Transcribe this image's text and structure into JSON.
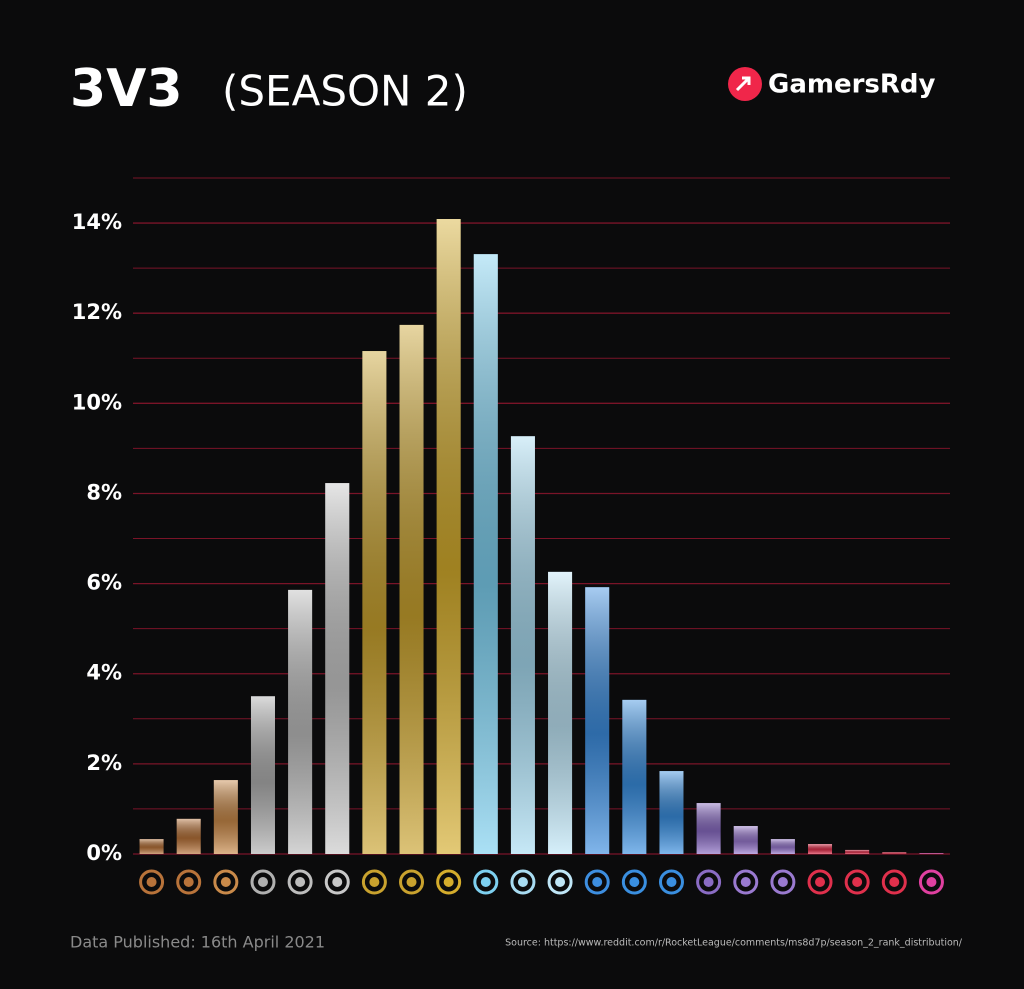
{
  "chart_data": {
    "type": "bar",
    "title": "3V3",
    "subtitle": "(SEASON 2)",
    "brand": "GamersRdy",
    "footer": "Data Published: 16th April 2021",
    "source": "Source: https://www.reddit.com/r/RocketLeague/comments/ms8d7p/season_2_rank_distribution/",
    "categories": [
      null,
      null,
      null,
      null,
      null,
      null,
      null,
      null,
      null,
      null,
      null,
      null,
      null,
      null,
      null,
      null,
      null,
      null,
      null,
      null,
      null,
      null
    ],
    "values": [
      0.33,
      0.78,
      1.64,
      3.5,
      5.86,
      8.23,
      11.16,
      11.74,
      14.09,
      13.31,
      9.27,
      6.26,
      5.92,
      3.42,
      1.84,
      1.13,
      0.62,
      0.33,
      0.22,
      0.09,
      0.04,
      0.02
    ],
    "colors": [
      "#b8733a",
      "#b8733a",
      "#c98a4a",
      "#b0b0b0",
      "#bdbdbd",
      "#c8c8c8",
      "#c9a22e",
      "#c9a22e",
      "#d4ac2c",
      "#7dd0f0",
      "#a8dcf2",
      "#bfe6f7",
      "#3d8ee0",
      "#3a8fe0",
      "#3a8fe0",
      "#8a6cc4",
      "#9a7ad0",
      "#9a7ad0",
      "#e0304c",
      "#e0304c",
      "#e0304c",
      "#e040a0"
    ],
    "ylim": [
      0,
      15
    ],
    "yticks": [
      {
        "value": 0,
        "label": "0%"
      },
      {
        "value": 2,
        "label": "2%"
      },
      {
        "value": 4,
        "label": "4%"
      },
      {
        "value": 6,
        "label": "6%"
      },
      {
        "value": 8,
        "label": "8%"
      },
      {
        "value": 10,
        "label": "10%"
      },
      {
        "value": 12,
        "label": "12%"
      },
      {
        "value": 14,
        "label": "14%"
      }
    ],
    "minor_yticks": [
      1,
      3,
      5,
      7,
      9,
      11,
      13,
      15
    ],
    "grid": true,
    "grid_color": "#7a1428"
  }
}
